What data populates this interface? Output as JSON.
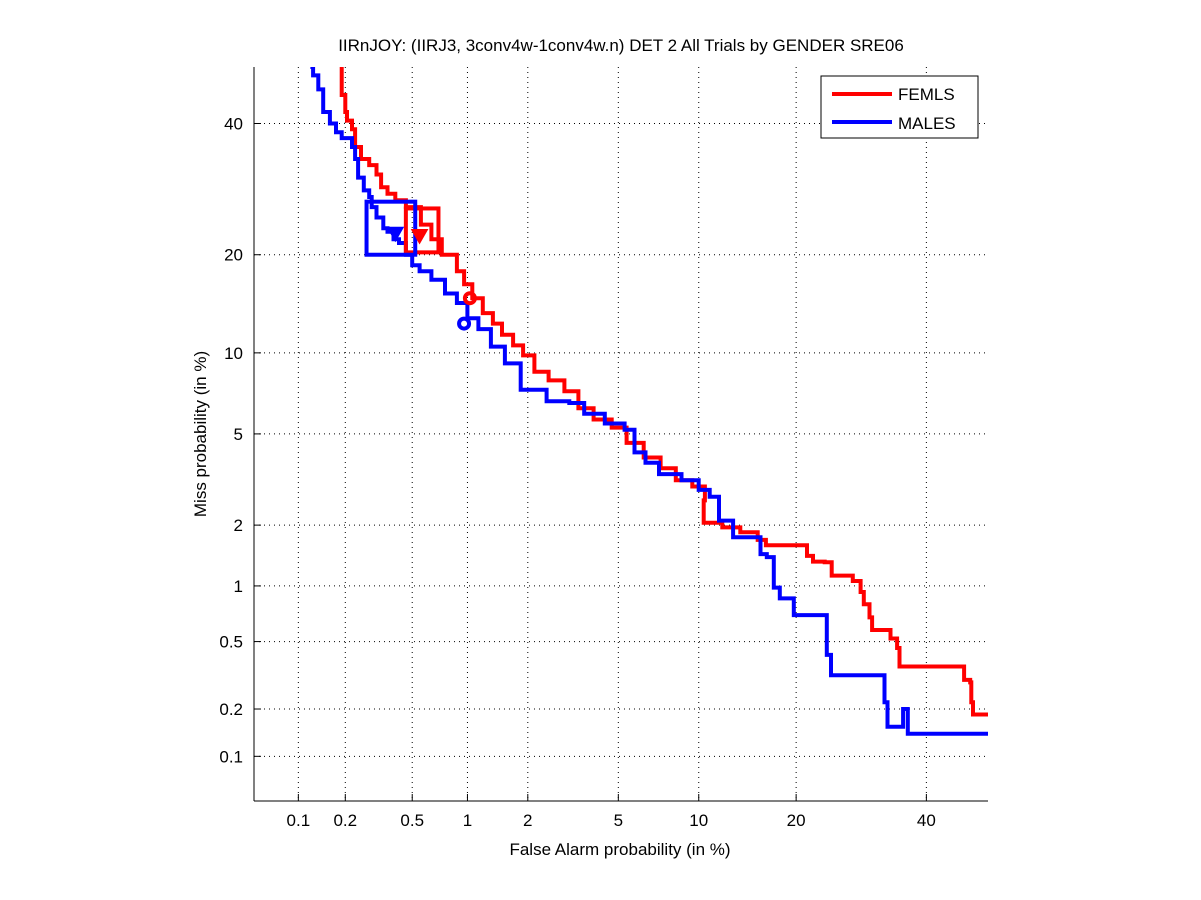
{
  "chart_data": {
    "type": "line",
    "scale": "probit (normal deviate) on both axes",
    "title": "IIRnJOY: (IIRJ3, 3conv4w-1conv4w.n) DET 2 All Trials by GENDER SRE06",
    "xlabel": "False Alarm probability (in %)",
    "ylabel": "Miss probability (in %)",
    "xlim": [
      0.05,
      51
    ],
    "ylim": [
      0.05,
      50
    ],
    "xticks": [
      0.1,
      0.2,
      0.5,
      1,
      2,
      5,
      10,
      20,
      40
    ],
    "xtick_labels": [
      "0.1",
      "0.2",
      "0.5",
      "1",
      "2",
      "5",
      "10",
      "20",
      "40"
    ],
    "yticks": [
      0.1,
      0.2,
      0.5,
      1,
      2,
      5,
      10,
      20,
      40
    ],
    "ytick_labels": [
      "0.1",
      "0.2",
      "0.5",
      "1",
      "2",
      "5",
      "10",
      "20",
      "40"
    ],
    "grid": true,
    "legend_position": "top-right",
    "series": [
      {
        "name": "FEMLS",
        "color": "#ff0000",
        "points": [
          [
            0.19,
            50
          ],
          [
            0.19,
            45
          ],
          [
            0.2,
            42
          ],
          [
            0.205,
            40.5
          ],
          [
            0.22,
            39
          ],
          [
            0.23,
            36
          ],
          [
            0.25,
            34
          ],
          [
            0.28,
            33
          ],
          [
            0.31,
            31.5
          ],
          [
            0.33,
            29.5
          ],
          [
            0.36,
            28.5
          ],
          [
            0.4,
            27.5
          ],
          [
            0.46,
            26.5
          ],
          [
            0.56,
            24
          ],
          [
            0.64,
            22
          ],
          [
            0.73,
            20
          ],
          [
            0.88,
            18
          ],
          [
            0.96,
            16.5
          ],
          [
            1.06,
            15
          ],
          [
            1.2,
            13.5
          ],
          [
            1.35,
            12.5
          ],
          [
            1.5,
            11.5
          ],
          [
            1.7,
            10.6
          ],
          [
            1.9,
            9.8
          ],
          [
            2.15,
            8.6
          ],
          [
            2.5,
            8.0
          ],
          [
            2.95,
            7.3
          ],
          [
            3.4,
            6.3
          ],
          [
            3.95,
            5.7
          ],
          [
            4.7,
            5.3
          ],
          [
            5.4,
            4.6
          ],
          [
            6.3,
            4.0
          ],
          [
            7.3,
            3.6
          ],
          [
            8.3,
            3.2
          ],
          [
            9.5,
            3.0
          ],
          [
            10.5,
            2.6
          ],
          [
            10.4,
            2.05
          ],
          [
            12.0,
            1.95
          ],
          [
            13.7,
            1.85
          ],
          [
            15.5,
            1.7
          ],
          [
            16.4,
            1.6
          ],
          [
            20.7,
            1.6
          ],
          [
            21.4,
            1.42
          ],
          [
            22.2,
            1.33
          ],
          [
            23.8,
            1.32
          ],
          [
            24.8,
            1.13
          ],
          [
            27.9,
            1.06
          ],
          [
            29.1,
            0.93
          ],
          [
            29.6,
            0.8
          ],
          [
            30.5,
            0.68
          ],
          [
            30.9,
            0.58
          ],
          [
            32.1,
            0.58
          ],
          [
            33.9,
            0.52
          ],
          [
            35.0,
            0.46
          ],
          [
            35.4,
            0.36
          ],
          [
            46.0,
            0.36
          ],
          [
            46.7,
            0.3
          ],
          [
            47.8,
            0.29
          ],
          [
            48.0,
            0.22
          ],
          [
            48.3,
            0.185
          ],
          [
            51.0,
            0.185
          ]
        ]
      },
      {
        "name": "MALES",
        "color": "#0000ff",
        "points": [
          [
            0.12,
            50
          ],
          [
            0.125,
            48.5
          ],
          [
            0.135,
            46
          ],
          [
            0.145,
            42
          ],
          [
            0.16,
            40
          ],
          [
            0.175,
            38.5
          ],
          [
            0.19,
            37.5
          ],
          [
            0.22,
            36
          ],
          [
            0.23,
            34
          ],
          [
            0.24,
            31
          ],
          [
            0.26,
            29
          ],
          [
            0.28,
            28
          ],
          [
            0.29,
            26.5
          ],
          [
            0.31,
            25
          ],
          [
            0.34,
            23.5
          ],
          [
            0.36,
            23
          ],
          [
            0.39,
            22
          ],
          [
            0.42,
            21.5
          ],
          [
            0.46,
            20
          ],
          [
            0.5,
            18.7
          ],
          [
            0.55,
            18
          ],
          [
            0.64,
            17
          ],
          [
            0.76,
            15.5
          ],
          [
            0.88,
            14.5
          ],
          [
            1.0,
            13.0
          ],
          [
            1.14,
            12
          ],
          [
            1.32,
            10.5
          ],
          [
            1.55,
            9.2
          ],
          [
            1.85,
            7.4
          ],
          [
            2.45,
            6.7
          ],
          [
            3.1,
            6.6
          ],
          [
            3.6,
            6.0
          ],
          [
            4.4,
            5.5
          ],
          [
            5.3,
            5.2
          ],
          [
            5.8,
            4.2
          ],
          [
            6.4,
            3.8
          ],
          [
            7.2,
            3.4
          ],
          [
            8.7,
            3.2
          ],
          [
            10.0,
            2.9
          ],
          [
            10.9,
            2.7
          ],
          [
            11.7,
            2.1
          ],
          [
            13.0,
            1.75
          ],
          [
            14.4,
            1.75
          ],
          [
            15.8,
            1.45
          ],
          [
            16.5,
            1.4
          ],
          [
            17.3,
            0.98
          ],
          [
            18.0,
            0.86
          ],
          [
            19.7,
            0.7
          ],
          [
            23.6,
            0.7
          ],
          [
            24.1,
            0.42
          ],
          [
            24.7,
            0.32
          ],
          [
            32.5,
            0.32
          ],
          [
            32.9,
            0.22
          ],
          [
            33.4,
            0.155
          ],
          [
            35.0,
            0.155
          ],
          [
            36.0,
            0.2
          ],
          [
            36.8,
            0.14
          ],
          [
            51.0,
            0.14
          ]
        ]
      }
    ],
    "markers": [
      {
        "series": "FEMLS",
        "type": "triangle-down",
        "fa": 0.55,
        "miss": 22.5,
        "color": "#ff0000"
      },
      {
        "series": "MALES",
        "type": "triangle-down",
        "fa": 0.4,
        "miss": 22.8,
        "color": "#0000ff"
      },
      {
        "series": "FEMLS",
        "type": "circle",
        "fa": 1.03,
        "miss": 15.0,
        "color": "#ff0000"
      },
      {
        "series": "MALES",
        "type": "circle",
        "fa": 0.96,
        "miss": 12.5,
        "color": "#0000ff"
      }
    ],
    "boxes": [
      {
        "series": "FEMLS",
        "fa_range": [
          0.46,
          0.7
        ],
        "miss_range": [
          20.3,
          26.3
        ],
        "color": "#ff0000"
      },
      {
        "series": "MALES",
        "fa_range": [
          0.27,
          0.52
        ],
        "miss_range": [
          20.0,
          27.3
        ],
        "color": "#0000ff"
      }
    ]
  }
}
